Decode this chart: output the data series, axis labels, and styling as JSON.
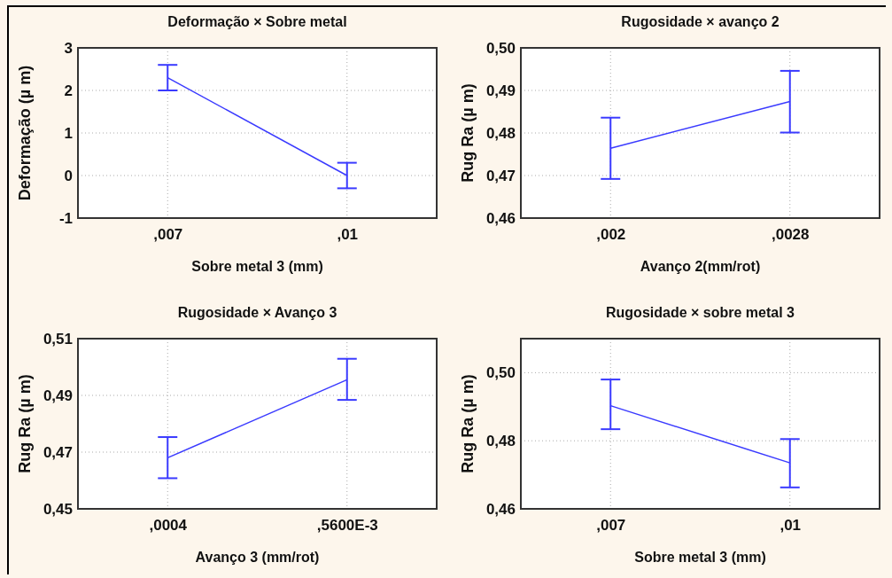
{
  "chart_data": [
    {
      "type": "line",
      "title": "Deformação × Sobre metal",
      "xlabel": "Sobre metal 3 (mm)",
      "ylabel": "Deformação (µ m)",
      "categories": [
        ",007",
        ",01"
      ],
      "series": [
        {
          "color": "#3a3aff",
          "values": [
            2.3,
            0.0
          ],
          "errors": [
            [
              2.0,
              2.6
            ],
            [
              -0.3,
              0.3
            ]
          ]
        }
      ],
      "ylim": [
        -1,
        3
      ],
      "yticks": [
        -1,
        0,
        1,
        2,
        3
      ],
      "grid": true,
      "line_style": "solid"
    },
    {
      "type": "line",
      "title": "Rugosidade × avanço 2",
      "xlabel": "Avanço 2(mm/rot)",
      "ylabel": "Rug Ra (µ m)",
      "categories": [
        ",002",
        ",0028"
      ],
      "series": [
        {
          "color": "#3a3aff",
          "values": [
            0.4764,
            0.4874
          ],
          "errors": [
            [
              0.4692,
              0.4836
            ],
            [
              0.4801,
              0.4946
            ]
          ]
        }
      ],
      "ylim": [
        0.46,
        0.5
      ],
      "yticks": [
        {
          "value": 0.46,
          "label": "0,46"
        },
        {
          "value": 0.47,
          "label": "0,47"
        },
        {
          "value": 0.48,
          "label": "0,48"
        },
        {
          "value": 0.49,
          "label": "0,49"
        },
        {
          "value": 0.5,
          "label": "0,50"
        }
      ],
      "grid": true,
      "line_style": "solid"
    },
    {
      "type": "line",
      "title": "Rugosidade × Avanço 3",
      "xlabel": "Avanço 3 (mm/rot)",
      "ylabel": "Rug Ra (µ m)",
      "categories": [
        ",0004",
        ",5600E-3"
      ],
      "series": [
        {
          "color": "#3a3aff",
          "values": [
            0.468,
            0.4955
          ],
          "errors": [
            [
              0.4608,
              0.4753
            ],
            [
              0.4884,
              0.5029
            ]
          ]
        }
      ],
      "ylim": [
        0.45,
        0.51
      ],
      "yticks": [
        {
          "value": 0.45,
          "label": "0,45"
        },
        {
          "value": 0.47,
          "label": "0,47"
        },
        {
          "value": 0.49,
          "label": "0,49"
        },
        {
          "value": 0.51,
          "label": "0,51"
        }
      ],
      "grid": true,
      "line_style": "solid"
    },
    {
      "type": "line",
      "title": "Rugosidade × sobre metal 3",
      "xlabel": "Sobre metal 3 (mm)",
      "ylabel": "Rug Ra (µ m)",
      "categories": [
        ",007",
        ",01"
      ],
      "series": [
        {
          "color": "#3a3aff",
          "values": [
            0.4903,
            0.4735
          ],
          "errors": [
            [
              0.4834,
              0.498
            ],
            [
              0.4663,
              0.4805
            ]
          ]
        }
      ],
      "ylim": [
        0.46,
        0.51
      ],
      "yticks": [
        {
          "value": 0.46,
          "label": "0,46"
        },
        {
          "value": 0.48,
          "label": "0,48"
        },
        {
          "value": 0.5,
          "label": "0,50"
        }
      ],
      "grid": true,
      "line_style": "solid"
    }
  ]
}
